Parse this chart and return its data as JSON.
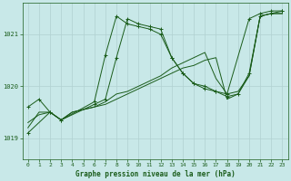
{
  "background_color": "#c8e8e8",
  "grid_color": "#b0d0d0",
  "line_color": "#1a5c1a",
  "xlabel": "Graphe pression niveau de la mer (hPa)",
  "xlim": [
    -0.5,
    23.5
  ],
  "ylim": [
    1018.6,
    1021.6
  ],
  "yticks": [
    1019,
    1020,
    1021
  ],
  "xticks": [
    0,
    1,
    2,
    3,
    4,
    5,
    6,
    7,
    8,
    9,
    10,
    11,
    12,
    13,
    14,
    15,
    16,
    17,
    18,
    19,
    20,
    21,
    22,
    23
  ],
  "series": [
    {
      "x": [
        0,
        2,
        3,
        6,
        7,
        8,
        9,
        10,
        11,
        12,
        13,
        14,
        15,
        16,
        17,
        18,
        20,
        21,
        22,
        23
      ],
      "y": [
        1019.1,
        1019.5,
        1019.35,
        1019.7,
        1020.6,
        1021.35,
        1021.2,
        1021.15,
        1021.1,
        1021.0,
        1020.55,
        1020.25,
        1020.05,
        1019.95,
        1019.9,
        1019.85,
        1021.3,
        1021.4,
        1021.45,
        1021.45
      ],
      "marker": "+"
    },
    {
      "x": [
        0,
        1,
        2,
        3,
        4,
        5,
        6,
        7,
        8,
        9,
        10,
        11,
        12,
        13,
        14,
        15,
        16,
        17,
        18,
        19,
        20,
        21,
        22,
        23
      ],
      "y": [
        1019.3,
        1019.45,
        1019.5,
        1019.35,
        1019.5,
        1019.55,
        1019.6,
        1019.65,
        1019.75,
        1019.85,
        1019.95,
        1020.05,
        1020.15,
        1020.25,
        1020.35,
        1020.4,
        1020.5,
        1020.55,
        1019.75,
        1019.85,
        1020.2,
        1021.35,
        1021.4,
        1021.4
      ],
      "marker": null
    },
    {
      "x": [
        0,
        1,
        2,
        3,
        4,
        5,
        6,
        7,
        8,
        9,
        10,
        11,
        12,
        13,
        14,
        15,
        16,
        17,
        18,
        19,
        20,
        21,
        22,
        23
      ],
      "y": [
        1019.2,
        1019.5,
        1019.5,
        1019.35,
        1019.5,
        1019.55,
        1019.6,
        1019.7,
        1019.85,
        1019.9,
        1020.0,
        1020.1,
        1020.2,
        1020.35,
        1020.45,
        1020.55,
        1020.65,
        1020.15,
        1019.85,
        1019.9,
        1020.2,
        1021.35,
        1021.4,
        1021.4
      ],
      "marker": null
    },
    {
      "x": [
        0,
        1,
        2,
        3,
        6,
        7,
        8,
        9,
        10,
        11,
        12,
        13,
        14,
        15,
        16,
        17,
        18,
        19,
        20,
        21,
        22,
        23
      ],
      "y": [
        1019.6,
        1019.75,
        1019.5,
        1019.35,
        1019.65,
        1019.75,
        1020.55,
        1021.3,
        1021.2,
        1021.15,
        1021.1,
        1020.55,
        1020.25,
        1020.05,
        1020.0,
        1019.9,
        1019.8,
        1019.85,
        1020.25,
        1021.35,
        1021.4,
        1021.45
      ],
      "marker": "+"
    }
  ]
}
